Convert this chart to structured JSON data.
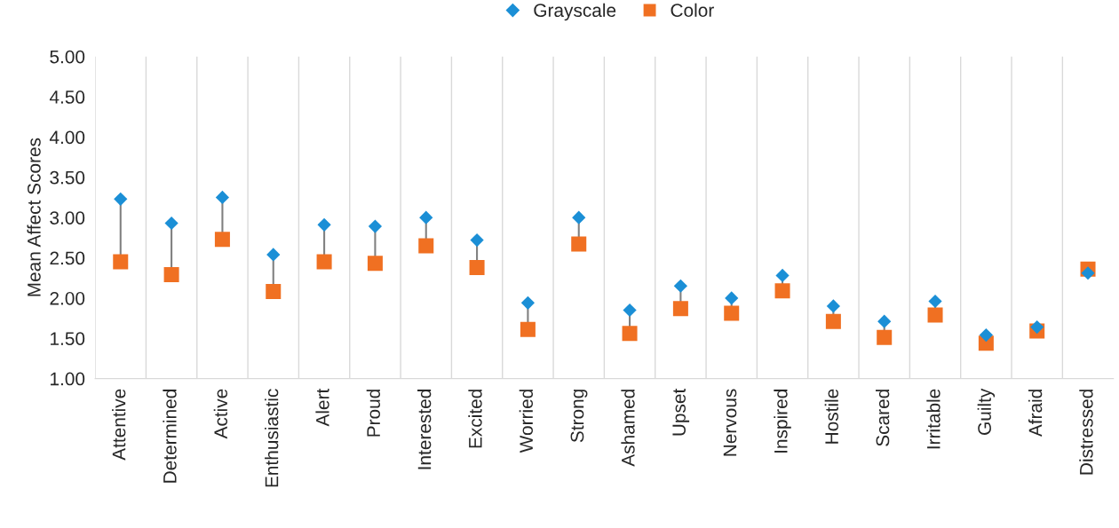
{
  "chart_data": {
    "type": "scatter",
    "ylabel": "Mean Affect Scores",
    "categories": [
      "Attentive",
      "Determined",
      "Active",
      "Enthusiastic",
      "Alert",
      "Proud",
      "Interested",
      "Excited",
      "Worried",
      "Strong",
      "Ashamed",
      "Upset",
      "Nervous",
      "Inspired",
      "Hostile",
      "Scared",
      "Irritable",
      "Guilty",
      "Afraid",
      "Distressed"
    ],
    "series": [
      {
        "name": "Grayscale",
        "color": "#1b8fd6",
        "marker": "diamond",
        "values": [
          3.23,
          2.93,
          3.25,
          2.54,
          2.91,
          2.89,
          3.0,
          2.72,
          1.94,
          3.0,
          1.85,
          2.15,
          2.0,
          2.28,
          1.9,
          1.71,
          1.96,
          1.54,
          1.64,
          2.31
        ]
      },
      {
        "name": "Color",
        "color": "#f07022",
        "marker": "square",
        "values": [
          2.45,
          2.29,
          2.73,
          2.08,
          2.45,
          2.43,
          2.65,
          2.38,
          1.61,
          2.67,
          1.56,
          1.87,
          1.81,
          2.09,
          1.71,
          1.51,
          1.79,
          1.44,
          1.59,
          2.36
        ]
      }
    ],
    "ylim": [
      1.0,
      5.0
    ],
    "yticks": [
      {
        "value": 1.0,
        "label": "1.00"
      },
      {
        "value": 1.5,
        "label": "1.50"
      },
      {
        "value": 2.0,
        "label": "2.00"
      },
      {
        "value": 2.5,
        "label": "2.50"
      },
      {
        "value": 3.0,
        "label": "3.00"
      },
      {
        "value": 3.5,
        "label": "3.50"
      },
      {
        "value": 4.0,
        "label": "4.00"
      },
      {
        "value": 4.5,
        "label": "4.50"
      },
      {
        "value": 5.0,
        "label": "5.00"
      }
    ],
    "grid": "x",
    "legend": "top"
  }
}
